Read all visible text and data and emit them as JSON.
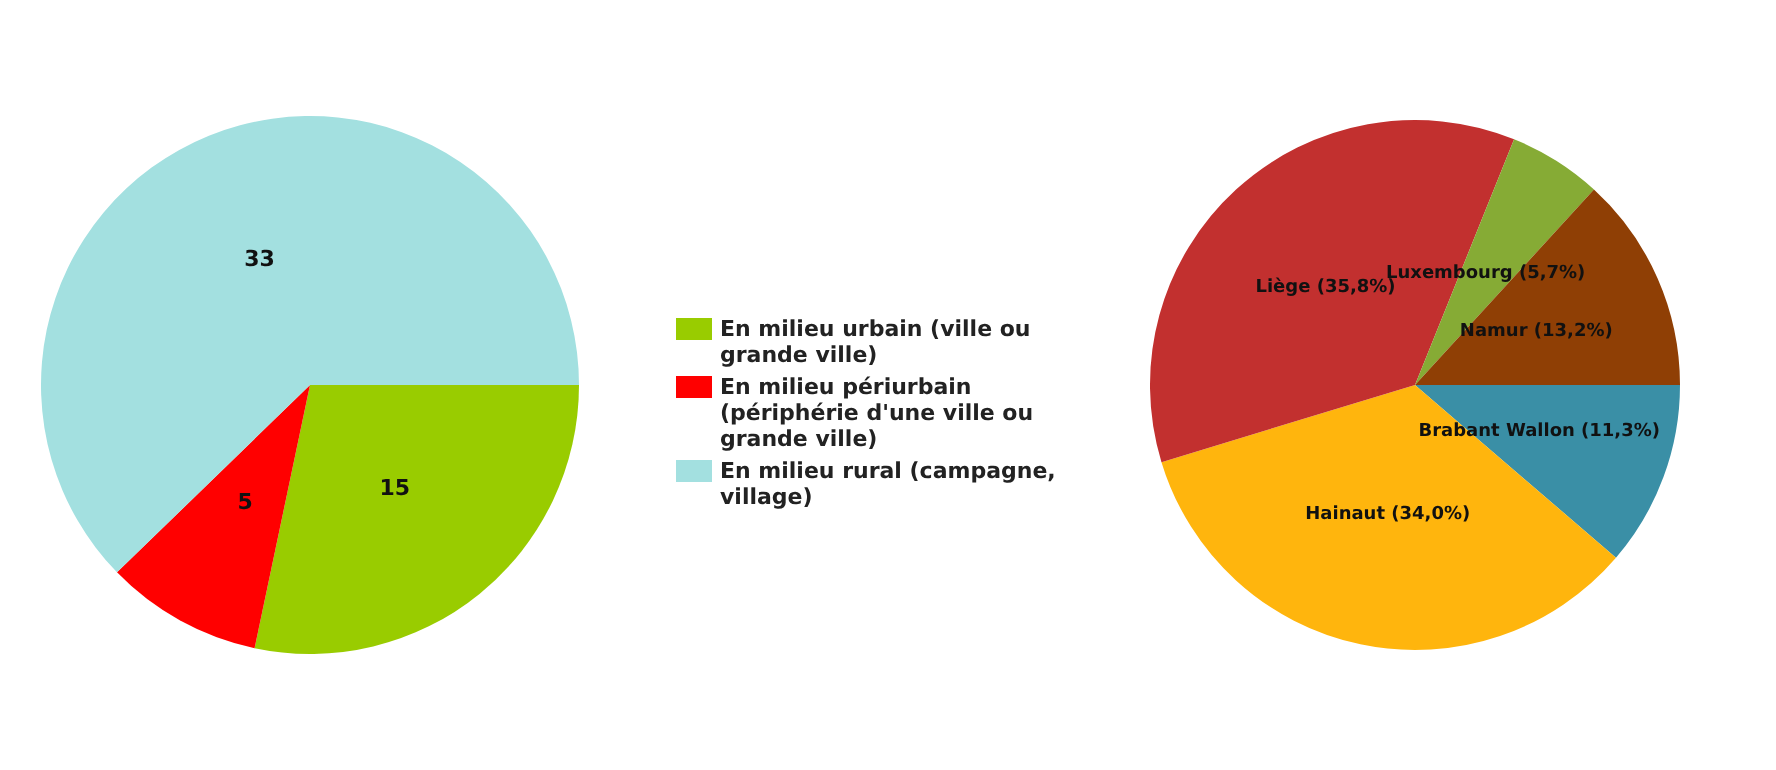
{
  "chart_data": [
    {
      "type": "pie",
      "categories": [
        "En milieu urbain (ville ou grande ville)",
        "En milieu périurbain (périphérie d'une ville ou grande ville)",
        "En milieu rural (campagne, village)"
      ],
      "values": [
        15,
        5,
        33
      ],
      "colors": [
        "#99cc00",
        "#ff0000",
        "#a3e0e0"
      ],
      "data_labels": true,
      "legend": "right"
    },
    {
      "type": "pie",
      "categories": [
        "Brabant Wallon",
        "Hainaut",
        "Liège",
        "Luxembourg",
        "Namur"
      ],
      "values": [
        11.3,
        34.0,
        35.8,
        5.7,
        13.2
      ],
      "colors": [
        "#3a8fa6",
        "#ffb50d",
        "#c2302f",
        "#86ab35",
        "#8f3f05"
      ],
      "value_labels": [
        "(11,3%)",
        "(34,0%)",
        "(35,8%)",
        "(5,7%)",
        "(13,2%)"
      ],
      "legend": false
    }
  ]
}
